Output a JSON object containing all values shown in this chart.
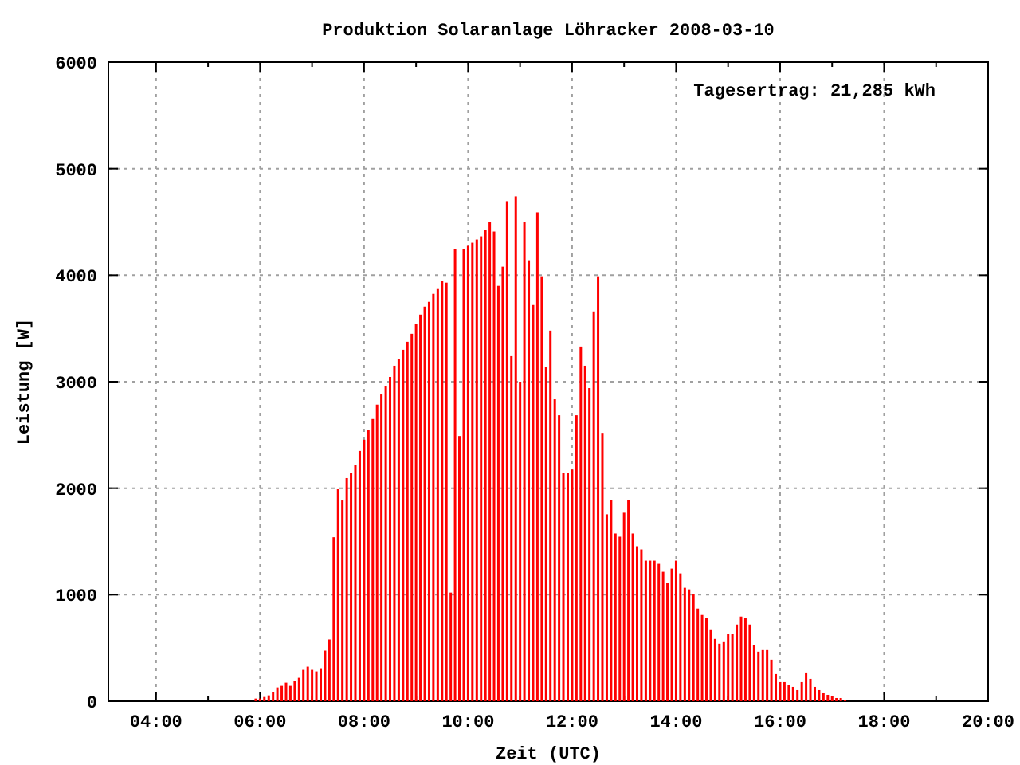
{
  "chart_data": {
    "type": "bar",
    "title": "Produktion Solaranlage Löhracker 2008-03-10",
    "xlabel": "Zeit (UTC)",
    "ylabel": "Leistung [W]",
    "annotations": [
      "Tagesertrag: 21,285 kWh"
    ],
    "xlim": [
      3.083,
      20
    ],
    "ylim": [
      0,
      6000
    ],
    "xticks": [
      {
        "value": 4,
        "label": "04:00"
      },
      {
        "value": 5,
        "label": null
      },
      {
        "value": 6,
        "label": "06:00"
      },
      {
        "value": 7,
        "label": null
      },
      {
        "value": 8,
        "label": "08:00"
      },
      {
        "value": 9,
        "label": null
      },
      {
        "value": 10,
        "label": "10:00"
      },
      {
        "value": 11,
        "label": null
      },
      {
        "value": 12,
        "label": "12:00"
      },
      {
        "value": 13,
        "label": null
      },
      {
        "value": 14,
        "label": "14:00"
      },
      {
        "value": 15,
        "label": null
      },
      {
        "value": 16,
        "label": "16:00"
      },
      {
        "value": 17,
        "label": null
      },
      {
        "value": 18,
        "label": "18:00"
      },
      {
        "value": 19,
        "label": null
      },
      {
        "value": 20,
        "label": "20:00"
      }
    ],
    "yticks": [
      0,
      1000,
      2000,
      3000,
      4000,
      5000,
      6000
    ],
    "grid": true,
    "x": [
      5.917,
      6,
      6.083,
      6.167,
      6.25,
      6.333,
      6.417,
      6.5,
      6.583,
      6.667,
      6.75,
      6.833,
      6.917,
      7,
      7.083,
      7.167,
      7.25,
      7.333,
      7.417,
      7.5,
      7.583,
      7.667,
      7.75,
      7.833,
      7.917,
      8,
      8.083,
      8.167,
      8.25,
      8.333,
      8.417,
      8.5,
      8.583,
      8.667,
      8.75,
      8.833,
      8.917,
      9,
      9.083,
      9.167,
      9.25,
      9.333,
      9.417,
      9.5,
      9.583,
      9.667,
      9.75,
      9.833,
      9.917,
      10,
      10.083,
      10.167,
      10.25,
      10.333,
      10.417,
      10.5,
      10.583,
      10.667,
      10.75,
      10.833,
      10.917,
      11,
      11.083,
      11.167,
      11.25,
      11.333,
      11.417,
      11.5,
      11.583,
      11.667,
      11.75,
      11.833,
      11.917,
      12,
      12.083,
      12.167,
      12.25,
      12.333,
      12.417,
      12.5,
      12.583,
      12.667,
      12.75,
      12.833,
      12.917,
      13,
      13.083,
      13.167,
      13.25,
      13.333,
      13.417,
      13.5,
      13.583,
      13.667,
      13.75,
      13.833,
      13.917,
      14,
      14.083,
      14.167,
      14.25,
      14.333,
      14.417,
      14.5,
      14.583,
      14.667,
      14.75,
      14.833,
      14.917,
      15,
      15.083,
      15.167,
      15.25,
      15.333,
      15.417,
      15.5,
      15.583,
      15.667,
      15.75,
      15.833,
      15.917,
      16,
      16.083,
      16.167,
      16.25,
      16.333,
      16.417,
      16.5,
      16.583,
      16.667,
      16.75,
      16.833,
      16.917,
      17,
      17.083,
      17.167,
      17.25
    ],
    "series": [
      {
        "color": "#ff0000",
        "values": [
          25,
          25,
          40,
          55,
          85,
          130,
          145,
          175,
          145,
          190,
          220,
          295,
          325,
          295,
          280,
          310,
          475,
          580,
          1540,
          1990,
          1885,
          2095,
          2140,
          2215,
          2350,
          2455,
          2545,
          2650,
          2785,
          2880,
          2955,
          3045,
          3150,
          3210,
          3300,
          3375,
          3450,
          3540,
          3630,
          3705,
          3750,
          3825,
          3870,
          3945,
          3930,
          1020,
          4245,
          2490,
          4245,
          4275,
          4305,
          4335,
          4365,
          4425,
          4500,
          4410,
          3900,
          4080,
          4695,
          3240,
          4740,
          3000,
          4500,
          4140,
          3720,
          4590,
          3990,
          3135,
          3480,
          2835,
          2685,
          2145,
          2145,
          2175,
          2685,
          3330,
          3150,
          2940,
          3660,
          3990,
          2520,
          1755,
          1890,
          1575,
          1545,
          1770,
          1890,
          1575,
          1455,
          1425,
          1320,
          1320,
          1320,
          1290,
          1215,
          1110,
          1245,
          1320,
          1200,
          1065,
          1050,
          1005,
          870,
          810,
          780,
          675,
          585,
          540,
          555,
          630,
          630,
          720,
          795,
          780,
          720,
          525,
          465,
          480,
          480,
          390,
          255,
          180,
          180,
          150,
          135,
          105,
          180,
          270,
          210,
          135,
          105,
          75,
          60,
          45,
          30,
          30,
          15
        ]
      }
    ]
  }
}
